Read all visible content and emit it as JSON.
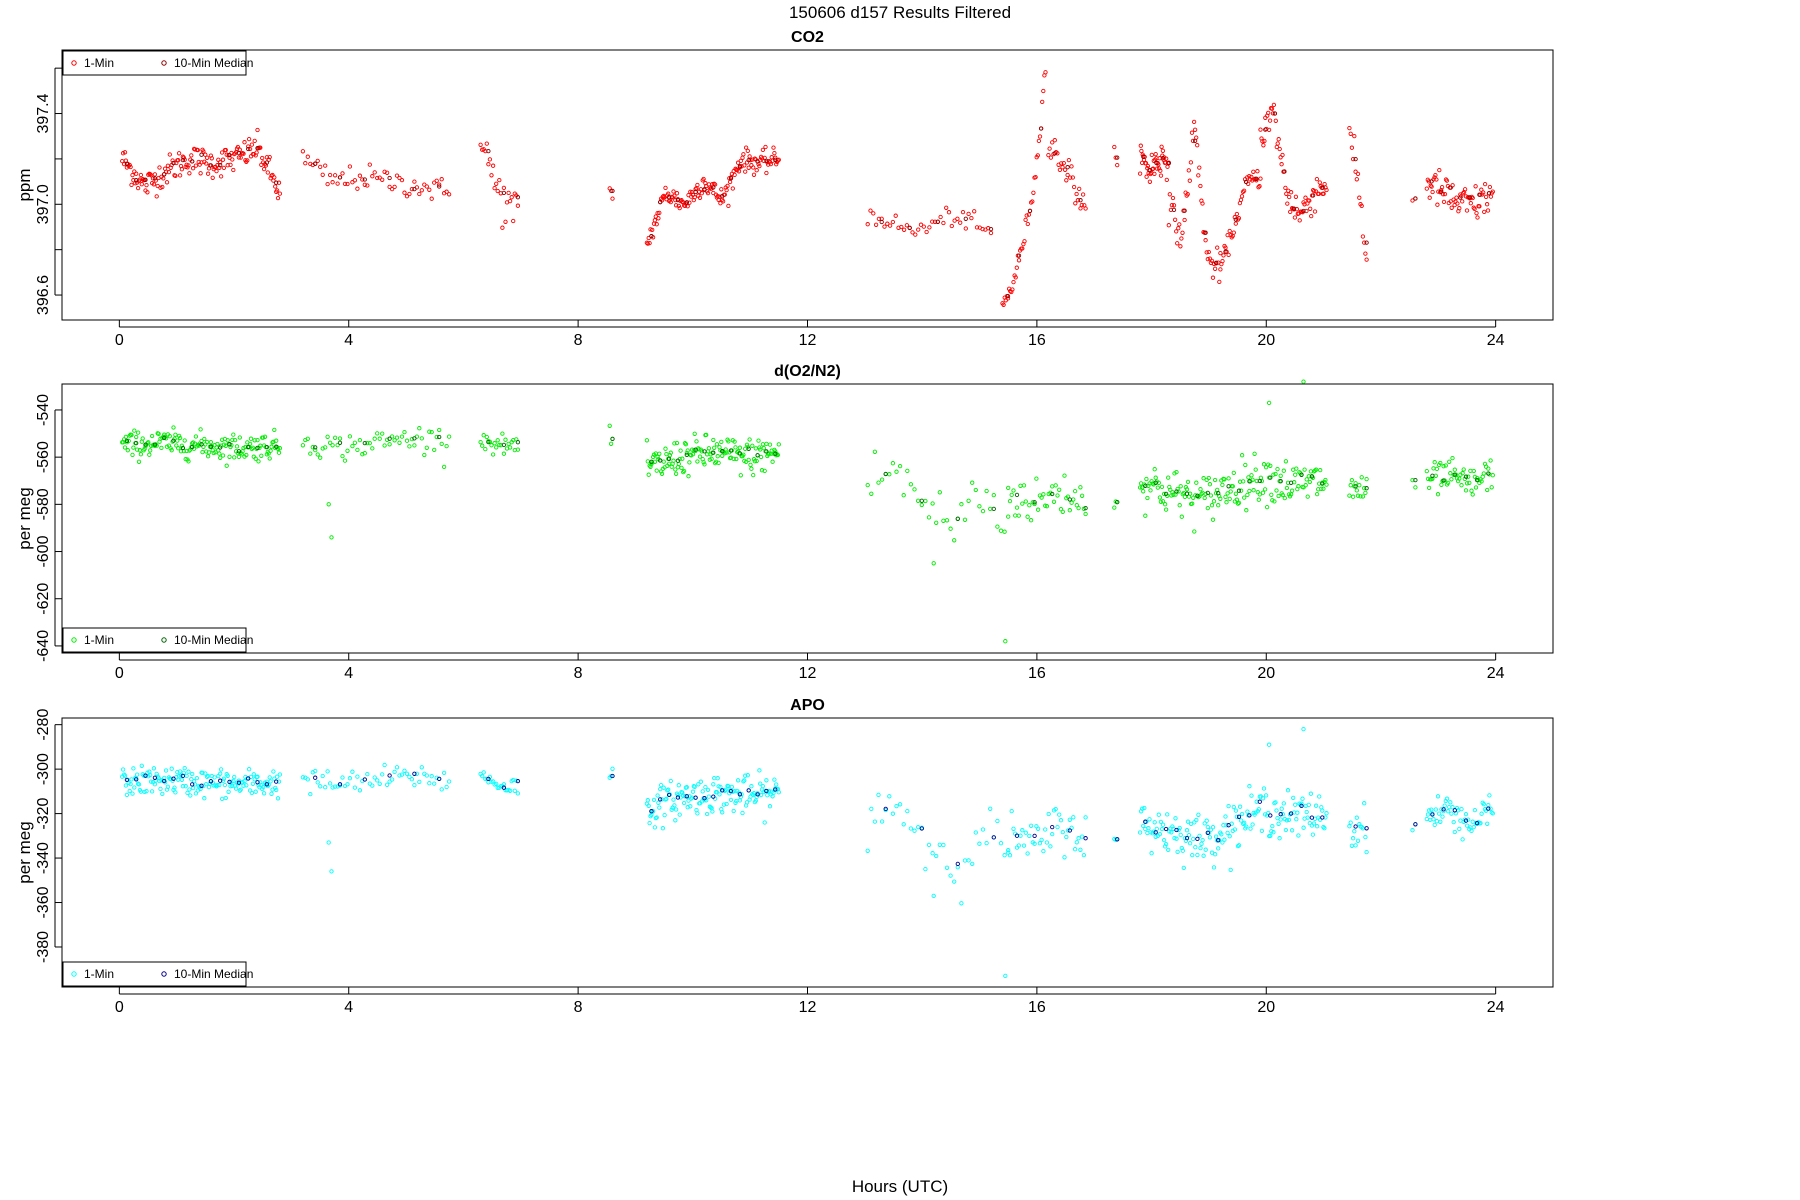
{
  "figure": {
    "supertitle": "150606   d157   Results Filtered",
    "xlabel": "Hours (UTC)"
  },
  "chart_data": [
    {
      "type": "scatter",
      "title": "CO2",
      "ylabel": "ppm",
      "xlim": [
        -1.0,
        25.0
      ],
      "ylim": [
        396.49,
        397.68
      ],
      "xticks": [
        0,
        4,
        8,
        12,
        16,
        20,
        24
      ],
      "yticks": [
        396.6,
        397.0,
        397.4
      ],
      "yminor": [
        396.8,
        397.2,
        397.6
      ],
      "ytick_labels": [
        "396.6",
        "397.0",
        "397.4"
      ],
      "legend": {
        "position": "top-left",
        "entries": [
          "1-Min",
          "10-Min Median"
        ]
      },
      "series": [
        {
          "name": "1-Min",
          "color": "#ff0000",
          "segments": [
            {
              "x0": 0.05,
              "x1": 2.8,
              "n": 170,
              "base": [
                397.2,
                397.08,
                397.15,
                397.2,
                397.18,
                397.2,
                397.25,
                397.05
              ],
              "noise": 0.045
            },
            {
              "x0": 3.2,
              "x1": 5.75,
              "n": 60,
              "base": [
                397.2,
                397.1,
                397.12,
                397.1,
                397.08,
                397.05
              ],
              "noise": 0.04
            },
            {
              "x0": 6.3,
              "x1": 6.95,
              "n": 25,
              "base": [
                397.35,
                397.1,
                397.0,
                396.95
              ],
              "noise": 0.08
            },
            {
              "x0": 8.55,
              "x1": 8.6,
              "n": 3,
              "base": [
                397.05
              ],
              "noise": 0.03
            },
            {
              "x0": 9.2,
              "x1": 11.5,
              "n": 150,
              "base": [
                396.82,
                397.05,
                397.0,
                397.1,
                397.02,
                397.2,
                397.18,
                397.2
              ],
              "noise": 0.035
            },
            {
              "x0": 13.05,
              "x1": 15.2,
              "n": 45,
              "base": [
                396.95,
                396.93,
                396.88,
                396.9,
                396.95,
                396.92,
                396.87
              ],
              "noise": 0.03
            },
            {
              "x0": 15.4,
              "x1": 16.15,
              "n": 40,
              "base": [
                396.55,
                396.65,
                396.85,
                397.1,
                397.6
              ],
              "noise": 0.03
            },
            {
              "x0": 16.2,
              "x1": 16.85,
              "n": 30,
              "base": [
                397.25,
                397.2,
                397.1,
                396.95
              ],
              "noise": 0.05
            },
            {
              "x0": 17.35,
              "x1": 17.4,
              "n": 3,
              "base": [
                397.22
              ],
              "noise": 0.02
            },
            {
              "x0": 17.8,
              "x1": 18.3,
              "n": 45,
              "base": [
                397.2,
                397.15,
                397.2,
                397.2
              ],
              "noise": 0.06
            },
            {
              "x0": 18.3,
              "x1": 19.2,
              "n": 50,
              "base": [
                397.0,
                396.85,
                397.35,
                396.75,
                396.72
              ],
              "noise": 0.05
            },
            {
              "x0": 19.2,
              "x1": 19.9,
              "n": 40,
              "base": [
                396.72,
                396.9,
                397.1,
                397.12
              ],
              "noise": 0.03
            },
            {
              "x0": 19.9,
              "x1": 21.05,
              "n": 70,
              "base": [
                397.3,
                397.4,
                397.05,
                396.95,
                397.05,
                397.1
              ],
              "noise": 0.06
            },
            {
              "x0": 21.45,
              "x1": 21.75,
              "n": 15,
              "base": [
                397.3,
                397.1,
                396.75
              ],
              "noise": 0.05
            },
            {
              "x0": 22.55,
              "x1": 22.6,
              "n": 2,
              "base": [
                397.02
              ],
              "noise": 0.01
            },
            {
              "x0": 22.8,
              "x1": 23.95,
              "n": 70,
              "base": [
                397.1,
                397.05,
                397.0,
                397.0,
                397.05
              ],
              "noise": 0.06
            }
          ]
        },
        {
          "name": "10-Min Median",
          "color": "#8b0000",
          "marker": "dark-red",
          "n_hint": "one per 10 min"
        }
      ]
    },
    {
      "type": "scatter",
      "title": "d(O2/N2)",
      "ylabel": "per meg",
      "xlim": [
        -1.0,
        25.0
      ],
      "ylim": [
        -643.0,
        -529.0
      ],
      "xticks": [
        0,
        4,
        8,
        12,
        16,
        20,
        24
      ],
      "yticks": [
        -640,
        -620,
        -600,
        -580,
        -560,
        -540
      ],
      "yminor": [],
      "ytick_labels": [
        "-640",
        "-620",
        "-600",
        "-580",
        "-560",
        "-540"
      ],
      "legend": {
        "position": "bottom-left",
        "entries": [
          "1-Min",
          "10-Min Median"
        ]
      },
      "series": [
        {
          "name": "1-Min",
          "color": "#00ee00",
          "segments": [
            {
              "x0": 0.05,
              "x1": 2.8,
              "n": 170,
              "base": [
                -555,
                -554,
                -555,
                -556,
                -555
              ],
              "noise": 4.0
            },
            {
              "x0": 3.2,
              "x1": 5.75,
              "n": 60,
              "base": [
                -553,
                -556,
                -554,
                -552,
                -553
              ],
              "noise": 4.0
            },
            {
              "x0": 6.3,
              "x1": 6.95,
              "n": 25,
              "base": [
                -552,
                -555,
                -555
              ],
              "noise": 3.0
            },
            {
              "x0": 8.55,
              "x1": 8.6,
              "n": 3,
              "base": [
                -553
              ],
              "noise": 4.0
            },
            {
              "x0": 9.2,
              "x1": 11.5,
              "n": 150,
              "base": [
                -565,
                -560,
                -558,
                -560,
                -558
              ],
              "noise": 5.5
            },
            {
              "x0": 13.05,
              "x1": 15.5,
              "n": 40,
              "base": [
                -570,
                -565,
                -580,
                -590,
                -575,
                -590
              ],
              "noise": 9.0
            },
            {
              "x0": 15.5,
              "x1": 16.85,
              "n": 45,
              "base": [
                -575,
                -580,
                -575,
                -578
              ],
              "noise": 7.0
            },
            {
              "x0": 17.35,
              "x1": 17.4,
              "n": 3,
              "base": [
                -580
              ],
              "noise": 1.5
            },
            {
              "x0": 17.8,
              "x1": 21.05,
              "n": 180,
              "base": [
                -570,
                -575,
                -578,
                -572,
                -568,
                -572,
                -570
              ],
              "noise": 7.0
            },
            {
              "x0": 21.45,
              "x1": 21.75,
              "n": 15,
              "base": [
                -575,
                -572
              ],
              "noise": 6.0
            },
            {
              "x0": 22.55,
              "x1": 22.6,
              "n": 2,
              "base": [
                -573
              ],
              "noise": 2.0
            },
            {
              "x0": 22.8,
              "x1": 23.95,
              "n": 60,
              "base": [
                -570,
                -568,
                -572,
                -566
              ],
              "noise": 5.0
            }
          ],
          "outliers": [
            [
              3.65,
              -580
            ],
            [
              3.7,
              -594
            ],
            [
              15.45,
              -638
            ],
            [
              14.2,
              -605
            ],
            [
              20.65,
              -528
            ],
            [
              20.05,
              -537
            ]
          ]
        },
        {
          "name": "10-Min Median",
          "color": "#006400",
          "marker": "dark-green"
        }
      ]
    },
    {
      "type": "scatter",
      "title": "APO",
      "ylabel": "per meg",
      "xlim": [
        -1.0,
        25.0
      ],
      "ylim": [
        -398.0,
        -277.0
      ],
      "xticks": [
        0,
        4,
        8,
        12,
        16,
        20,
        24
      ],
      "yticks": [
        -380,
        -360,
        -340,
        -320,
        -300,
        -280
      ],
      "yminor": [],
      "ytick_labels": [
        "-380",
        "-360",
        "-340",
        "-320",
        "-300",
        "-280"
      ],
      "legend": {
        "position": "bottom-left",
        "entries": [
          "1-Min",
          "10-Min Median"
        ]
      },
      "series": [
        {
          "name": "1-Min",
          "color": "#00ffff",
          "segments": [
            {
              "x0": 0.05,
              "x1": 2.8,
              "n": 170,
              "base": [
                -306,
                -305,
                -306,
                -307,
                -306
              ],
              "noise": 4.5
            },
            {
              "x0": 3.2,
              "x1": 5.75,
              "n": 60,
              "base": [
                -305,
                -307,
                -305,
                -303,
                -305
              ],
              "noise": 4.0
            },
            {
              "x0": 6.3,
              "x1": 6.95,
              "n": 25,
              "base": [
                -303,
                -307,
                -308
              ],
              "noise": 3.0
            },
            {
              "x0": 8.55,
              "x1": 8.6,
              "n": 3,
              "base": [
                -303
              ],
              "noise": 4.0
            },
            {
              "x0": 9.2,
              "x1": 11.5,
              "n": 150,
              "base": [
                -318,
                -313,
                -311,
                -312,
                -311
              ],
              "noise": 6.0
            },
            {
              "x0": 13.05,
              "x1": 15.5,
              "n": 40,
              "base": [
                -320,
                -315,
                -330,
                -345,
                -325,
                -340
              ],
              "noise": 10.0
            },
            {
              "x0": 15.5,
              "x1": 16.85,
              "n": 45,
              "base": [
                -330,
                -335,
                -325,
                -330
              ],
              "noise": 7.5
            },
            {
              "x0": 17.35,
              "x1": 17.4,
              "n": 3,
              "base": [
                -332
              ],
              "noise": 1.5
            },
            {
              "x0": 17.8,
              "x1": 21.05,
              "n": 180,
              "base": [
                -325,
                -328,
                -332,
                -325,
                -318,
                -322,
                -320
              ],
              "noise": 7.5
            },
            {
              "x0": 21.45,
              "x1": 21.75,
              "n": 15,
              "base": [
                -328,
                -325
              ],
              "noise": 6.0
            },
            {
              "x0": 22.55,
              "x1": 22.6,
              "n": 2,
              "base": [
                -326
              ],
              "noise": 2.0
            },
            {
              "x0": 22.8,
              "x1": 23.95,
              "n": 60,
              "base": [
                -322,
                -318,
                -325,
                -318
              ],
              "noise": 5.5
            }
          ],
          "outliers": [
            [
              3.65,
              -333
            ],
            [
              3.7,
              -346
            ],
            [
              15.45,
              -393
            ],
            [
              14.2,
              -357
            ],
            [
              20.65,
              -282
            ],
            [
              20.05,
              -289
            ]
          ]
        },
        {
          "name": "10-Min Median",
          "color": "#00008b",
          "marker": "dark-blue"
        }
      ]
    }
  ]
}
